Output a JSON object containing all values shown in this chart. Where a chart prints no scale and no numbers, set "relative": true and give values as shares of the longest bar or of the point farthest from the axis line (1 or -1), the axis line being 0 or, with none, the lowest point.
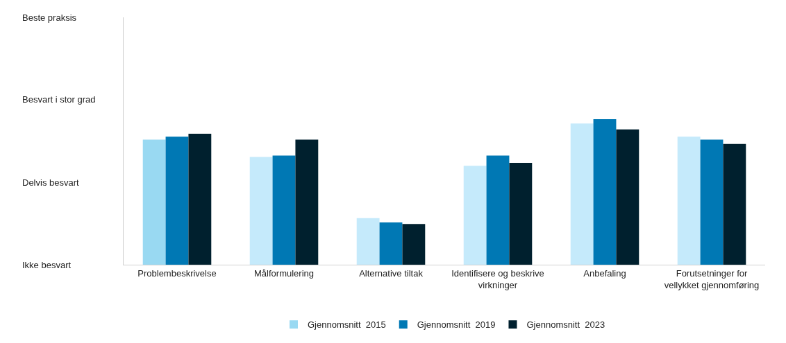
{
  "chart_data": {
    "type": "bar",
    "relative": true,
    "categories": [
      "Problembeskrivelse",
      "Målformulering",
      "Alternative tiltak",
      "Identifisere og beskrive virkninger",
      "Anbefaling",
      "Forutsetninger for vellykket gjennomføring"
    ],
    "series": [
      {
        "name": "Gjennomsnitt  2015",
        "color": "#c5eafb",
        "colors": [
          "#99d9f2",
          "#c5eafb",
          "#c5eafb",
          "#c5eafb",
          "#c5eafb",
          "#c5eafb"
        ],
        "values": [
          0.86,
          0.74,
          0.32,
          0.68,
          0.97,
          0.88
        ]
      },
      {
        "name": "Gjennomsnitt  2019",
        "color": "#0078b4",
        "values": [
          0.88,
          0.75,
          0.29,
          0.75,
          1,
          0.86
        ]
      },
      {
        "name": "Gjennomsnitt  2023",
        "color": "#00202e",
        "values": [
          0.9,
          0.86,
          0.28,
          0.7,
          0.93,
          0.83
        ]
      }
    ],
    "annotations": [
      "Beste praksis",
      "Besvart i stor grad",
      "Delvis besvart",
      "Ikke besvart"
    ],
    "legend": "bottom"
  }
}
